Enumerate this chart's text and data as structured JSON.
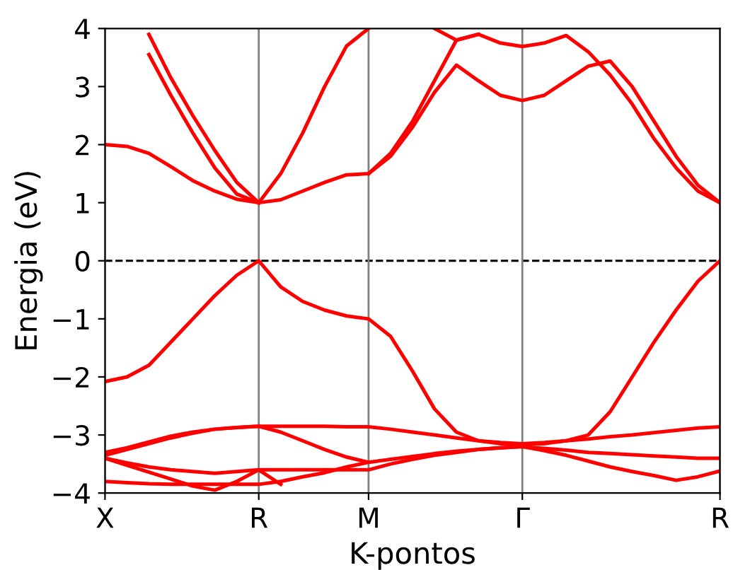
{
  "chart_data": {
    "type": "line",
    "xlabel": "K-pontos",
    "ylabel": "Energia (eV)",
    "categories": [
      "X",
      null,
      null,
      null,
      null,
      null,
      null,
      "R",
      null,
      null,
      null,
      null,
      "M",
      null,
      null,
      null,
      null,
      null,
      null,
      "Γ",
      null,
      null,
      null,
      null,
      null,
      null,
      null,
      null,
      "R"
    ],
    "ylim": [
      -4,
      4
    ],
    "yticks": [
      -4,
      -3,
      -2,
      -1,
      0,
      1,
      2,
      3,
      4
    ],
    "grid": "x",
    "legend": false,
    "marker": "none",
    "line_style": "solid",
    "ref_lines": [
      {
        "axis": "y",
        "value": 0,
        "color": "#000000",
        "line_style": "dashed"
      }
    ],
    "series": [
      {
        "color": "#ff0000",
        "values": [
          2.0,
          1.97,
          1.85,
          1.62,
          1.38,
          1.2,
          1.06,
          1.0,
          1.05,
          1.2,
          1.35,
          1.48,
          1.5,
          1.8,
          2.3,
          2.9,
          3.37,
          3.1,
          2.85,
          2.76,
          2.85,
          3.1,
          3.35,
          3.44,
          3.0,
          2.4,
          1.8,
          1.3,
          1.0
        ]
      },
      {
        "color": "#ff0000",
        "values": [
          null,
          null,
          null,
          null,
          null,
          null,
          null,
          null,
          null,
          null,
          null,
          null,
          1.5,
          1.85,
          2.4,
          3.1,
          3.8,
          3.9,
          3.75,
          3.69,
          3.75,
          3.88,
          3.6,
          3.2,
          2.7,
          2.1,
          1.6,
          1.2,
          1.0
        ]
      },
      {
        "color": "#ff0000",
        "values": [
          null,
          null,
          3.55,
          2.85,
          2.2,
          1.6,
          1.15,
          1.0,
          null,
          null,
          null,
          null,
          null,
          null,
          null,
          null,
          null,
          null,
          null,
          null,
          null,
          null,
          null,
          null,
          null,
          null,
          null,
          null,
          null
        ]
      },
      {
        "color": "#ff0000",
        "values": [
          null,
          null,
          3.9,
          3.15,
          2.5,
          1.9,
          1.35,
          1.0,
          null,
          null,
          null,
          null,
          null,
          null,
          null,
          null,
          null,
          null,
          null,
          null,
          null,
          null,
          null,
          null,
          null,
          null,
          null,
          null,
          null
        ]
      },
      {
        "color": "#ff0000",
        "values": [
          null,
          null,
          null,
          null,
          null,
          null,
          null,
          1.0,
          1.5,
          2.2,
          3.0,
          3.7,
          4.0,
          null,
          null,
          null,
          null,
          null,
          null,
          null,
          null,
          null,
          null,
          null,
          null,
          null,
          null,
          null,
          null
        ]
      },
      {
        "color": "#ff0000",
        "values": [
          null,
          null,
          null,
          null,
          null,
          null,
          null,
          null,
          null,
          null,
          null,
          null,
          null,
          null,
          null,
          4.0,
          3.8,
          3.9,
          null,
          null,
          null,
          null,
          null,
          null,
          null,
          null,
          null,
          null,
          null
        ]
      },
      {
        "color": "#ff0000",
        "values": [
          -2.08,
          -2.0,
          -1.8,
          -1.4,
          -1.0,
          -0.6,
          -0.25,
          0,
          -0.45,
          -0.7,
          -0.85,
          -0.95,
          -1.0,
          -1.3,
          -1.9,
          -2.55,
          -2.95,
          -3.1,
          -3.15,
          -3.15,
          -3.15,
          -3.1,
          -3.0,
          -2.6,
          -2.0,
          -1.4,
          -0.85,
          -0.35,
          0
        ]
      },
      {
        "color": "#ff0000",
        "values": [
          -3.35,
          -3.25,
          -3.15,
          -3.05,
          -2.97,
          -2.9,
          -2.87,
          -2.85,
          -2.85,
          -2.85,
          -2.85,
          -2.86,
          -2.86,
          -2.9,
          -2.95,
          -3.0,
          -3.05,
          -3.1,
          -3.13,
          -3.15,
          -3.13,
          -3.1,
          -3.07,
          -3.03,
          -3.0,
          -2.96,
          -2.92,
          -2.88,
          -2.86
        ]
      },
      {
        "color": "#ff0000",
        "values": [
          -3.3,
          -3.22,
          -3.12,
          -3.02,
          -2.95,
          -2.9,
          -2.87,
          -2.85,
          -2.95,
          -3.1,
          -3.25,
          -3.38,
          -3.47,
          -3.42,
          -3.37,
          -3.32,
          -3.28,
          -3.25,
          -3.22,
          -3.2,
          -3.27,
          -3.35,
          -3.45,
          -3.55,
          -3.63,
          -3.7,
          -3.78,
          -3.72,
          -3.62
        ]
      },
      {
        "color": "#ff0000",
        "values": [
          -3.4,
          -3.48,
          -3.55,
          -3.6,
          -3.63,
          -3.66,
          -3.63,
          -3.6,
          -3.6,
          -3.6,
          -3.6,
          -3.6,
          -3.6,
          -3.5,
          -3.42,
          -3.35,
          -3.3,
          -3.25,
          -3.22,
          -3.2,
          -3.23,
          -3.26,
          -3.3,
          -3.32,
          -3.34,
          -3.36,
          -3.38,
          -3.4,
          -3.4
        ]
      },
      {
        "color": "#ff0000",
        "values": [
          -3.8,
          -3.82,
          -3.84,
          -3.85,
          -3.85,
          -3.85,
          -3.85,
          -3.85,
          -3.8,
          -3.72,
          -3.65,
          -3.55,
          -3.47,
          null,
          null,
          null,
          null,
          null,
          null,
          null,
          null,
          null,
          null,
          null,
          null,
          null,
          null,
          null,
          null
        ]
      },
      {
        "color": "#ff0000",
        "values": [
          -3.4,
          -3.52,
          -3.64,
          -3.76,
          -3.88,
          -3.95,
          -3.8,
          -3.6,
          -3.85,
          null,
          null,
          null,
          null,
          null,
          null,
          null,
          null,
          null,
          null,
          null,
          null,
          null,
          null,
          null,
          null,
          null,
          null,
          null,
          null
        ]
      }
    ]
  }
}
